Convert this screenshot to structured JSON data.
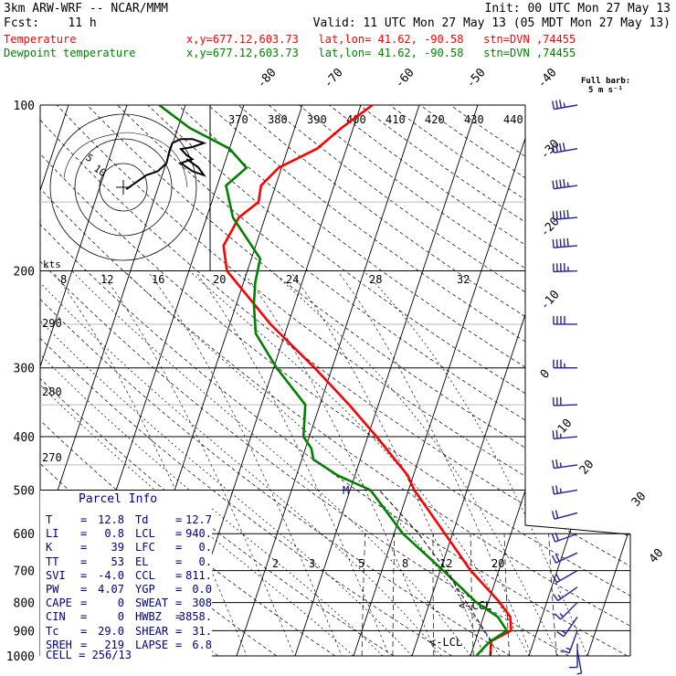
{
  "header": {
    "model": "3km ARW-WRF -- NCAR/MMM",
    "init": "Init: 00 UTC Mon 27 May 13",
    "fcst": "Fcst:    11 h",
    "valid": "Valid: 11 UTC Mon 27 May 13 (05 MDT Mon 27 May 13)",
    "temp_line": {
      "label": "Temperature",
      "info": "x,y=677.12,603.73   lat,lon= 41.62, -90.58   stn=DVN ,74455",
      "color": "#ff0000"
    },
    "dew_line": {
      "label": "Dewpoint temperature",
      "info": "x,y=677.12,603.73   lat,lon= 41.62, -90.58   stn=DVN ,74455",
      "color": "#008000"
    }
  },
  "wind_legend": {
    "title": "Full barb:",
    "value": "5 m s⁻¹"
  },
  "hodograph": {
    "unit": "kts",
    "rings": [
      "5",
      "10"
    ]
  },
  "parcel_info": {
    "title": "Parcel Info",
    "rows": [
      {
        "l1": "T",
        "v1": "12.8",
        "l2": "Td",
        "v2": "12.7"
      },
      {
        "l1": "LI",
        "v1": "0.8",
        "l2": "LCL",
        "v2": "940."
      },
      {
        "l1": "K",
        "v1": "39",
        "l2": "LFC",
        "v2": "0."
      },
      {
        "l1": "TT",
        "v1": "53",
        "l2": "EL",
        "v2": "0."
      },
      {
        "l1": "SVI",
        "v1": "-4.0",
        "l2": "CCL",
        "v2": "811."
      },
      {
        "l1": "PW",
        "v1": "4.07",
        "l2": "YGP",
        "v2": "0.0"
      },
      {
        "l1": "CAPE",
        "v1": "0",
        "l2": "SWEAT",
        "v2": "308"
      },
      {
        "l1": "CIN",
        "v1": "0",
        "l2": "HWBZ",
        "v2": "3858."
      },
      {
        "l1": "Tc",
        "v1": "29.0",
        "l2": "SHEAR",
        "v2": "31."
      },
      {
        "l1": "SREH",
        "v1": "219",
        "l2": "LAPSE",
        "v2": "6.8"
      }
    ],
    "cell": "CELL = 256/13"
  },
  "chart_data": {
    "type": "line",
    "title": "",
    "ylabel": "",
    "pressure_ticks": [
      100,
      200,
      300,
      400,
      500,
      600,
      700,
      800,
      900,
      1000
    ],
    "isotherm_labels": [
      -80,
      -70,
      -60,
      -50,
      -40,
      -30,
      -20,
      -10,
      0,
      10,
      20,
      30,
      40
    ],
    "theta_labels": [
      370,
      380,
      390,
      400,
      410,
      420,
      430,
      440
    ],
    "theta_labels_left": [
      290,
      280,
      270
    ],
    "mixing_ratio_labels_upper": [
      8,
      12,
      16,
      20,
      24,
      28,
      32
    ],
    "mixing_ratio_labels_lower": [
      2,
      3,
      5,
      8,
      12,
      20
    ],
    "level_labels": {
      "lcl": "<-LCL",
      "ccl": "<-CCL",
      "marker": "M"
    },
    "series": [
      {
        "name": "Temperature",
        "color": "#ff0000",
        "points": [
          [
            1000,
            13.4
          ],
          [
            950,
            12.8
          ],
          [
            940,
            12.7
          ],
          [
            900,
            15.5
          ],
          [
            850,
            14.6
          ],
          [
            800,
            12.0
          ],
          [
            700,
            5.2
          ],
          [
            600,
            -1.3
          ],
          [
            500,
            -9.0
          ],
          [
            470,
            -11.0
          ],
          [
            400,
            -18.5
          ],
          [
            350,
            -25.0
          ],
          [
            300,
            -33.0
          ],
          [
            250,
            -43.0
          ],
          [
            200,
            -53.5
          ],
          [
            180,
            -55.5
          ],
          [
            170,
            -55.0
          ],
          [
            160,
            -54.5
          ],
          [
            150,
            -52.0
          ],
          [
            140,
            -52.5
          ],
          [
            130,
            -50.5
          ],
          [
            120,
            -45.0
          ],
          [
            110,
            -42.0
          ],
          [
            100,
            -38.0
          ]
        ]
      },
      {
        "name": "Dewpoint temperature",
        "color": "#008000",
        "points": [
          [
            1000,
            11.0
          ],
          [
            960,
            12.0
          ],
          [
            940,
            12.6
          ],
          [
            900,
            14.8
          ],
          [
            850,
            12.5
          ],
          [
            800,
            8.0
          ],
          [
            700,
            0.5
          ],
          [
            600,
            -8.5
          ],
          [
            500,
            -16.5
          ],
          [
            470,
            -23.0
          ],
          [
            440,
            -28.0
          ],
          [
            420,
            -29.0
          ],
          [
            400,
            -31.0
          ],
          [
            350,
            -32.5
          ],
          [
            300,
            -39.5
          ],
          [
            260,
            -45.0
          ],
          [
            230,
            -47.0
          ],
          [
            210,
            -48.0
          ],
          [
            190,
            -48.5
          ],
          [
            160,
            -55.5
          ],
          [
            140,
            -58.5
          ],
          [
            130,
            -56.0
          ],
          [
            120,
            -60.0
          ],
          [
            110,
            -68.0
          ],
          [
            100,
            -74.5
          ]
        ]
      }
    ],
    "parcel_path": [
      [
        1000,
        13.4
      ],
      [
        940,
        12.7
      ],
      [
        850,
        8.7
      ],
      [
        700,
        1.0
      ],
      [
        600,
        -5.8
      ],
      [
        500,
        -15.0
      ]
    ],
    "wind_barbs": [
      {
        "p": 100,
        "dir": 260,
        "spd": 35
      },
      {
        "p": 120,
        "dir": 260,
        "spd": 40
      },
      {
        "p": 140,
        "dir": 262,
        "spd": 45
      },
      {
        "p": 160,
        "dir": 265,
        "spd": 50
      },
      {
        "p": 180,
        "dir": 265,
        "spd": 50
      },
      {
        "p": 200,
        "dir": 268,
        "spd": 45
      },
      {
        "p": 250,
        "dir": 270,
        "spd": 40
      },
      {
        "p": 300,
        "dir": 270,
        "spd": 35
      },
      {
        "p": 350,
        "dir": 268,
        "spd": 30
      },
      {
        "p": 400,
        "dir": 265,
        "spd": 28
      },
      {
        "p": 450,
        "dir": 262,
        "spd": 25
      },
      {
        "p": 500,
        "dir": 260,
        "spd": 25
      },
      {
        "p": 550,
        "dir": 255,
        "spd": 22
      },
      {
        "p": 600,
        "dir": 250,
        "spd": 20
      },
      {
        "p": 650,
        "dir": 245,
        "spd": 20
      },
      {
        "p": 700,
        "dir": 240,
        "spd": 20
      },
      {
        "p": 750,
        "dir": 235,
        "spd": 18
      },
      {
        "p": 800,
        "dir": 225,
        "spd": 15
      },
      {
        "p": 850,
        "dir": 215,
        "spd": 15
      },
      {
        "p": 900,
        "dir": 200,
        "spd": 15
      },
      {
        "p": 950,
        "dir": 180,
        "spd": 12
      },
      {
        "p": 975,
        "dir": 170,
        "spd": 8
      }
    ],
    "hodograph_path": [
      [
        0.5,
        -0.5
      ],
      [
        2,
        1
      ],
      [
        4,
        3
      ],
      [
        6,
        4
      ],
      [
        7.5,
        6
      ],
      [
        8,
        9
      ],
      [
        8.5,
        11
      ],
      [
        10,
        12
      ],
      [
        12,
        12
      ],
      [
        14,
        11
      ],
      [
        12,
        10
      ],
      [
        10,
        9.5
      ],
      [
        11,
        8
      ],
      [
        12,
        7
      ],
      [
        10,
        6
      ],
      [
        12,
        4
      ],
      [
        14,
        3
      ],
      [
        13,
        5
      ],
      [
        11,
        7
      ]
    ]
  }
}
